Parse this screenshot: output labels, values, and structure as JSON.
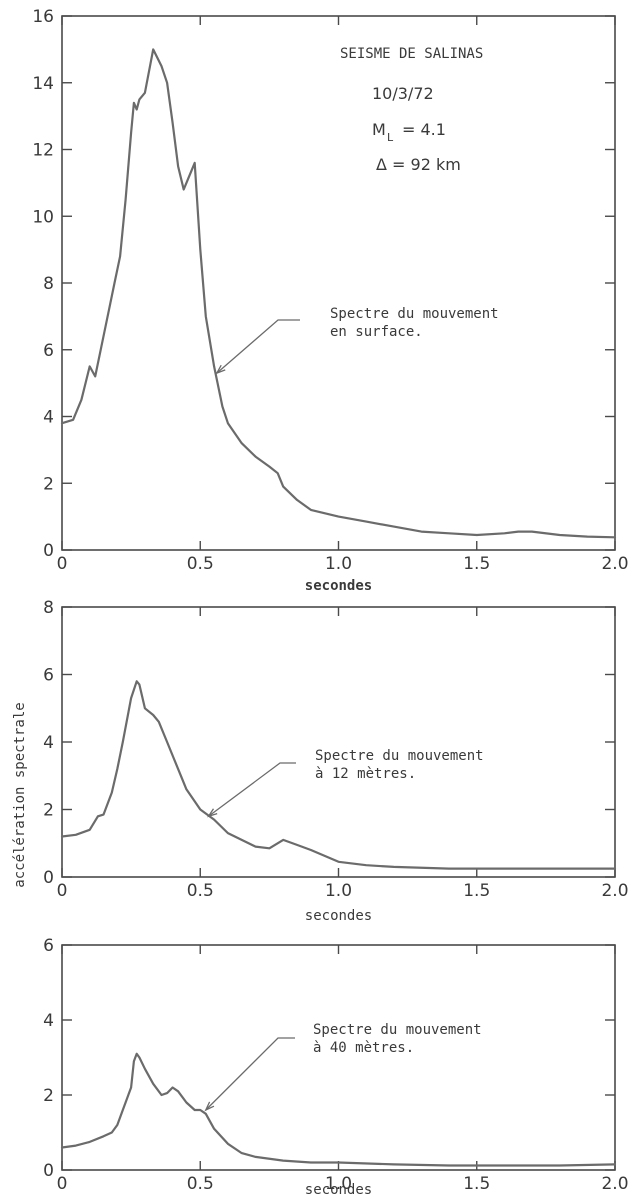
{
  "colors": {
    "curve": "#6b6b6b",
    "axis": "#4a4a4a",
    "text": "#3a3a3a",
    "background": "#ffffff"
  },
  "shared_ylabel": "accélération spectrale",
  "event_info": {
    "title": "SEISME DE SALINAS",
    "date": "10/3/72",
    "magnitude_symbol": "M",
    "magnitude_subscript": "L",
    "magnitude_value": "= 4.1",
    "distance": "Δ  = 92 km"
  },
  "chart_data": [
    {
      "type": "line",
      "xlabel": "secondes",
      "ylabel": "",
      "xlim": [
        0,
        2.0
      ],
      "ylim": [
        0,
        16
      ],
      "x_ticks": [
        0,
        0.5,
        1.0,
        1.5,
        2.0
      ],
      "x_tick_labels": [
        "0",
        "0.5",
        "1.0",
        "1.5",
        "2.0"
      ],
      "y_ticks": [
        0,
        2,
        4,
        6,
        8,
        10,
        12,
        14,
        16
      ],
      "y_tick_labels": [
        "0",
        "2",
        "4",
        "6",
        "8",
        "10",
        "12",
        "14",
        "16"
      ],
      "annotation": {
        "lines": [
          "Spectre du mouvement",
          "en surface."
        ],
        "point": [
          0.56,
          5.3
        ]
      },
      "series": [
        {
          "x": [
            0,
            0.04,
            0.07,
            0.1,
            0.12,
            0.14,
            0.17,
            0.19,
            0.21,
            0.23,
            0.25,
            0.26,
            0.27,
            0.28,
            0.3,
            0.33,
            0.36,
            0.38,
            0.4,
            0.42,
            0.44,
            0.46,
            0.48,
            0.5,
            0.52,
            0.55,
            0.58,
            0.6,
            0.65,
            0.7,
            0.75,
            0.78,
            0.8,
            0.85,
            0.9,
            1.0,
            1.1,
            1.2,
            1.3,
            1.4,
            1.5,
            1.6,
            1.65,
            1.7,
            1.8,
            1.9,
            2.0
          ],
          "y": [
            3.8,
            3.9,
            4.5,
            5.5,
            5.2,
            6.0,
            7.2,
            8.0,
            8.8,
            10.5,
            12.5,
            13.4,
            13.2,
            13.5,
            13.7,
            15.0,
            14.5,
            14.0,
            12.8,
            11.5,
            10.8,
            11.2,
            11.6,
            9.0,
            7.0,
            5.5,
            4.3,
            3.8,
            3.2,
            2.8,
            2.5,
            2.3,
            1.9,
            1.5,
            1.2,
            1.0,
            0.85,
            0.7,
            0.55,
            0.5,
            0.45,
            0.5,
            0.55,
            0.55,
            0.45,
            0.4,
            0.38
          ]
        }
      ]
    },
    {
      "type": "line",
      "xlabel": "secondes",
      "ylabel": "",
      "xlim": [
        0,
        2.0
      ],
      "ylim": [
        0,
        8
      ],
      "x_ticks": [
        0,
        0.5,
        1.0,
        1.5,
        2.0
      ],
      "x_tick_labels": [
        "0",
        "0.5",
        "1.0",
        "1.5",
        "2.0"
      ],
      "y_ticks": [
        0,
        2,
        4,
        6,
        8
      ],
      "y_tick_labels": [
        "0",
        "2",
        "4",
        "6",
        "8"
      ],
      "annotation": {
        "lines": [
          "Spectre du mouvement",
          "à 12 mètres."
        ],
        "point": [
          0.53,
          1.8
        ]
      },
      "series": [
        {
          "x": [
            0,
            0.05,
            0.1,
            0.13,
            0.15,
            0.18,
            0.2,
            0.22,
            0.25,
            0.27,
            0.28,
            0.3,
            0.33,
            0.35,
            0.38,
            0.4,
            0.43,
            0.45,
            0.5,
            0.55,
            0.6,
            0.65,
            0.7,
            0.75,
            0.8,
            0.85,
            0.9,
            1.0,
            1.1,
            1.2,
            1.4,
            1.6,
            1.8,
            2.0
          ],
          "y": [
            1.2,
            1.25,
            1.4,
            1.8,
            1.85,
            2.5,
            3.2,
            4.0,
            5.3,
            5.8,
            5.7,
            5.0,
            4.8,
            4.6,
            4.0,
            3.6,
            3.0,
            2.6,
            2.0,
            1.7,
            1.3,
            1.1,
            0.9,
            0.85,
            1.1,
            0.95,
            0.8,
            0.45,
            0.35,
            0.3,
            0.25,
            0.25,
            0.25,
            0.25
          ]
        }
      ]
    },
    {
      "type": "line",
      "xlabel": "secondes",
      "ylabel": "",
      "xlim": [
        0,
        2.0
      ],
      "ylim": [
        0,
        6
      ],
      "x_ticks": [
        0,
        0.5,
        1.0,
        1.5,
        2.0
      ],
      "x_tick_labels": [
        "0",
        "0.5",
        "1.0",
        "1.5",
        "2.0"
      ],
      "y_ticks": [
        0,
        2,
        4,
        6
      ],
      "y_tick_labels": [
        "0",
        "2",
        "4",
        "6"
      ],
      "annotation": {
        "lines": [
          "Spectre du mouvement",
          "à 40 mètres."
        ],
        "point": [
          0.52,
          1.6
        ]
      },
      "series": [
        {
          "x": [
            0,
            0.05,
            0.1,
            0.15,
            0.18,
            0.2,
            0.22,
            0.25,
            0.26,
            0.27,
            0.28,
            0.3,
            0.33,
            0.36,
            0.38,
            0.4,
            0.42,
            0.45,
            0.48,
            0.5,
            0.52,
            0.55,
            0.6,
            0.65,
            0.7,
            0.8,
            0.9,
            1.0,
            1.2,
            1.4,
            1.6,
            1.8,
            2.0
          ],
          "y": [
            0.6,
            0.65,
            0.75,
            0.9,
            1.0,
            1.2,
            1.6,
            2.2,
            2.9,
            3.1,
            3.0,
            2.7,
            2.3,
            2.0,
            2.05,
            2.2,
            2.1,
            1.8,
            1.6,
            1.6,
            1.5,
            1.1,
            0.7,
            0.45,
            0.35,
            0.25,
            0.2,
            0.2,
            0.15,
            0.12,
            0.12,
            0.12,
            0.15
          ]
        }
      ]
    }
  ]
}
